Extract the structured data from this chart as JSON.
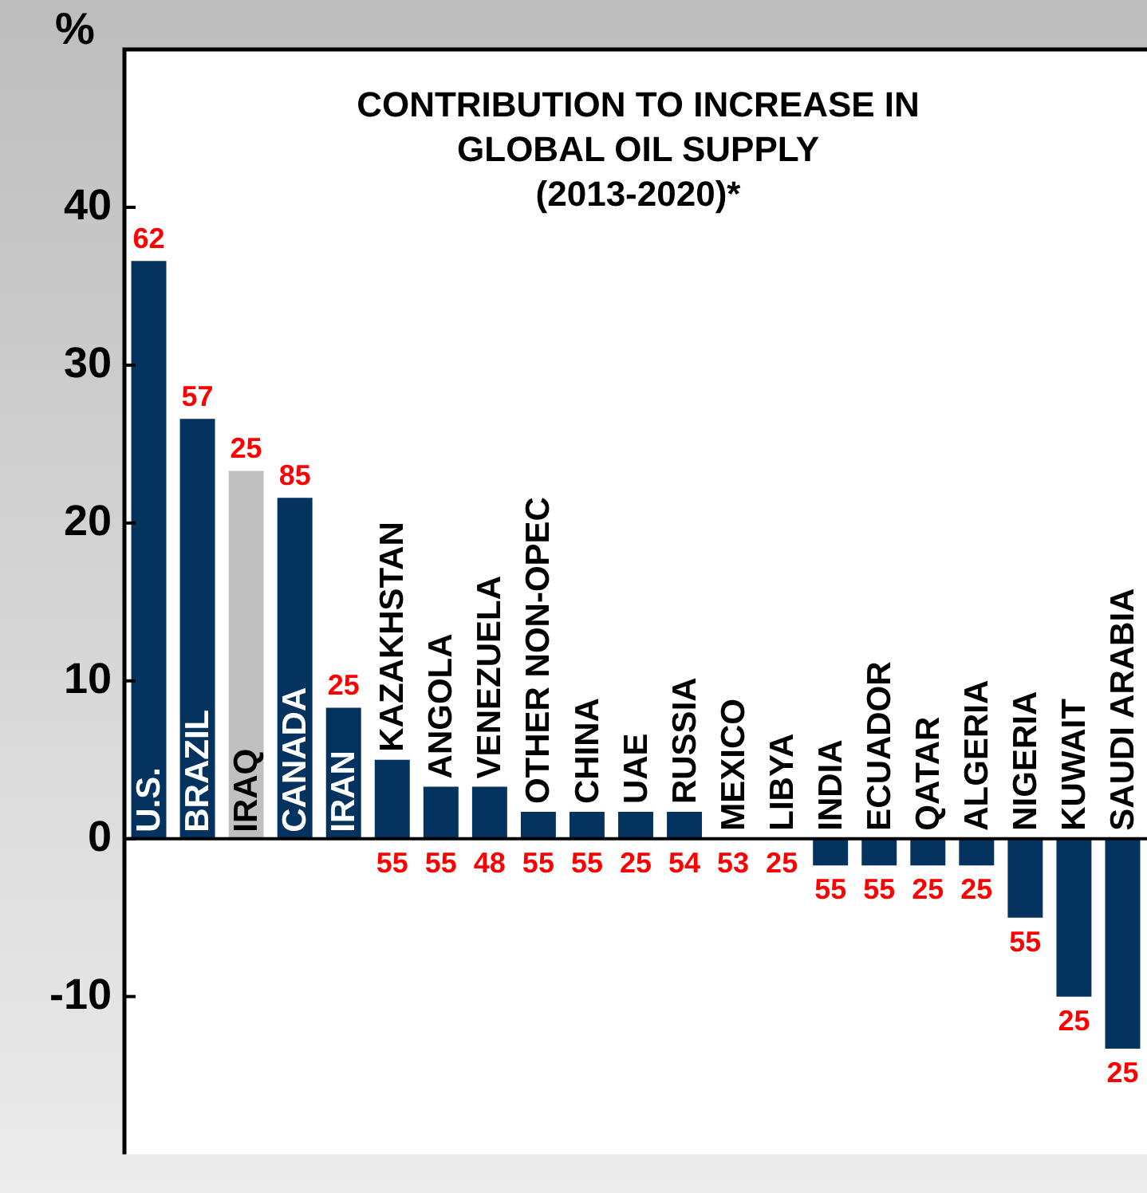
{
  "chart_data": {
    "type": "bar",
    "title": "CONTRIBUTION TO INCREASE IN\nGLOBAL OIL SUPPLY\n(2013-2020)*",
    "ylabel": "%",
    "categories": [
      "U.S.",
      "BRAZIL",
      "IRAQ",
      "CANADA",
      "IRAN",
      "KAZAKHSTAN",
      "ANGOLA",
      "VENEZUELA",
      "OTHER NON-OPEC",
      "CHINA",
      "UAE",
      "RUSSIA",
      "MEXICO",
      "LIBYA",
      "INDIA",
      "ECUADOR",
      "QATAR",
      "ALGERIA",
      "NIGERIA",
      "KUWAIT",
      "SAUDI ARABIA"
    ],
    "values": [
      36.6,
      26.6,
      23.3,
      21.6,
      8.3,
      5.0,
      3.3,
      3.3,
      1.7,
      1.7,
      1.7,
      1.7,
      0,
      0,
      -1.7,
      -1.7,
      -1.7,
      -1.7,
      -5.0,
      -10.0,
      -13.3
    ],
    "colors": [
      "#04335f",
      "#04335f",
      "#c0c0c0",
      "#04335f",
      "#04335f",
      "#04335f",
      "#04335f",
      "#04335f",
      "#04335f",
      "#04335f",
      "#04335f",
      "#04335f",
      "#04335f",
      "#04335f",
      "#04335f",
      "#04335f",
      "#04335f",
      "#04335f",
      "#04335f",
      "#04335f",
      "#04335f"
    ],
    "annotations": [
      {
        "text": "62",
        "x": "U.S.",
        "y": 36.6
      },
      {
        "text": "57",
        "x": "BRAZIL",
        "y": 26.6
      },
      {
        "text": "25",
        "x": "IRAQ",
        "y": 23.3
      },
      {
        "text": "85",
        "x": "CANADA",
        "y": 21.6
      },
      {
        "text": "25",
        "x": "IRAN",
        "y": 8.3
      },
      {
        "text": "55",
        "x": "KAZAKHSTAN",
        "y": 0
      },
      {
        "text": "55",
        "x": "ANGOLA",
        "y": 0
      },
      {
        "text": "48",
        "x": "VENEZUELA",
        "y": 0
      },
      {
        "text": "55",
        "x": "OTHER NON-OPEC",
        "y": 0
      },
      {
        "text": "55",
        "x": "CHINA",
        "y": 0
      },
      {
        "text": "25",
        "x": "UAE",
        "y": 0
      },
      {
        "text": "54",
        "x": "RUSSIA",
        "y": 0
      },
      {
        "text": "53",
        "x": "MEXICO",
        "y": 0
      },
      {
        "text": "25",
        "x": "LIBYA",
        "y": 0
      },
      {
        "text": "55",
        "x": "INDIA",
        "y": -1.7
      },
      {
        "text": "55",
        "x": "ECUADOR",
        "y": -1.7
      },
      {
        "text": "25",
        "x": "QATAR",
        "y": -1.7
      },
      {
        "text": "25",
        "x": "ALGERIA",
        "y": -1.7
      },
      {
        "text": "55",
        "x": "NIGERIA",
        "y": -5.0
      },
      {
        "text": "25",
        "x": "KUWAIT",
        "y": -10.0
      },
      {
        "text": "25",
        "x": "SAUDI ARABIA",
        "y": -13.3
      }
    ],
    "ylim": [
      -20,
      50
    ],
    "yticks": [
      -10,
      0,
      10,
      20,
      30,
      40
    ],
    "grid": false,
    "legend": false
  }
}
